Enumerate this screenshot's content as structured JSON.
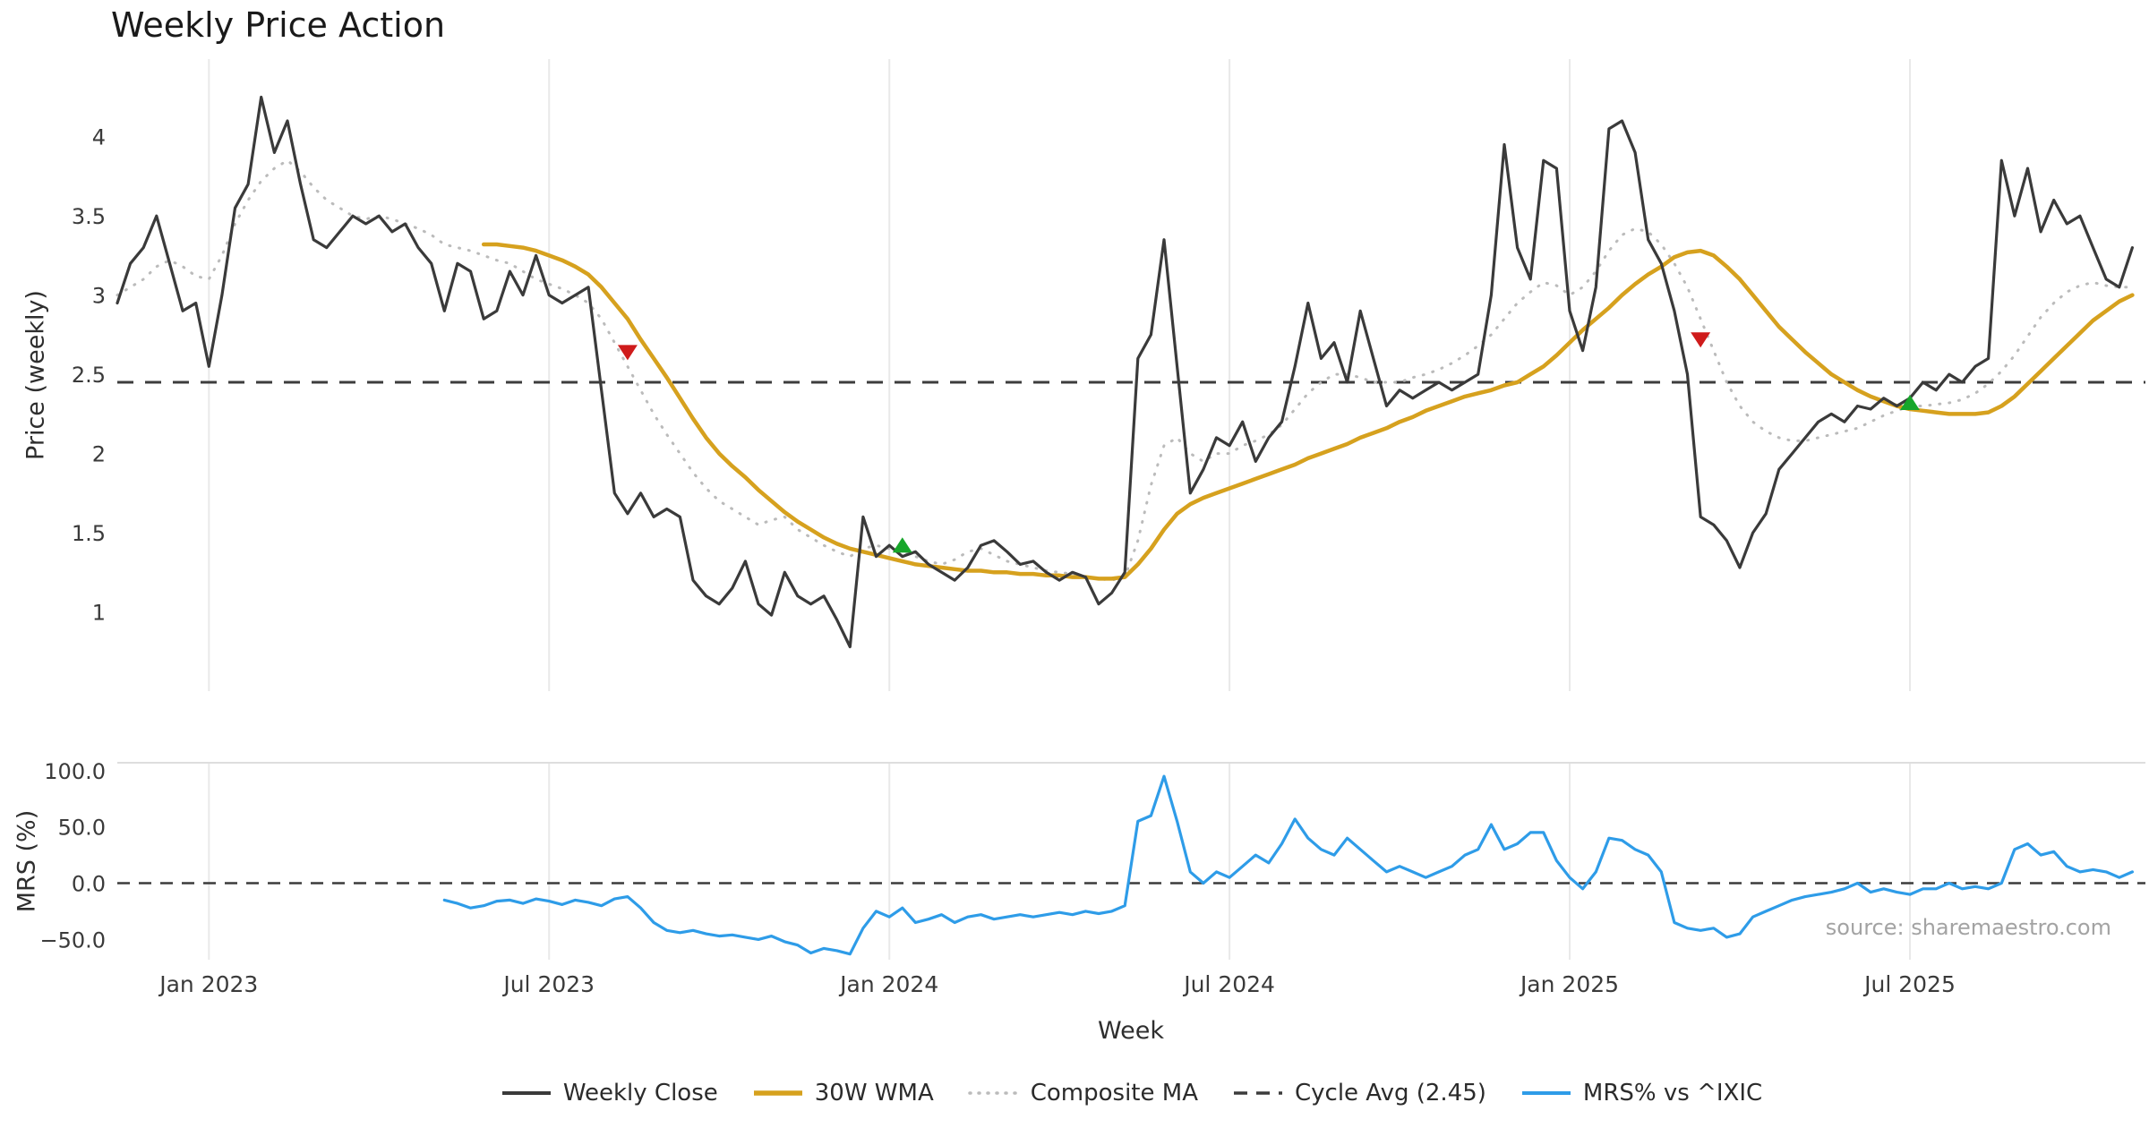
{
  "source_note": "source: sharemaestro.com",
  "legend": [
    {
      "label": "Weekly Close",
      "color": "#3a3a3a",
      "style": "solid"
    },
    {
      "label": "30W WMA",
      "color": "#d6a11e",
      "style": "solid-thick"
    },
    {
      "label": "Composite MA",
      "color": "#bbbbbb",
      "style": "dotted"
    },
    {
      "label": "Cycle Avg (2.45)",
      "color": "#3c3c3c",
      "style": "dashed"
    },
    {
      "label": "MRS% vs ^IXIC",
      "color": "#2e9ce8",
      "style": "solid"
    }
  ],
  "chart_data": {
    "type": "line",
    "title": "Weekly Price Action",
    "xlabel": "Week",
    "x_axis": {
      "tick_labels": [
        "Jan 2023",
        "Jul 2023",
        "Jan 2024",
        "Jul 2024",
        "Jan 2025",
        "Jul 2025"
      ],
      "tick_weeks": [
        7,
        33,
        59,
        85,
        111,
        137
      ],
      "total_weeks": 155
    },
    "price_panel": {
      "ylabel": "Price (weekly)",
      "yticks": [
        1,
        1.5,
        2,
        2.5,
        3,
        3.5,
        4
      ],
      "ytick_labels": [
        "1",
        "1.5",
        "2",
        "2.5",
        "3",
        "3.5",
        "4"
      ],
      "ylim": [
        0.5,
        4.49
      ],
      "cycle_avg": 2.45,
      "grid": "vertical-light",
      "sell_color": "#cf1b1b",
      "buy_color": "#17a62a",
      "sell_signals": [
        {
          "week": 39,
          "price": 2.64
        },
        {
          "week": 121,
          "price": 2.72
        }
      ],
      "buy_signals": [
        {
          "week": 60,
          "price": 1.42
        },
        {
          "week": 137,
          "price": 2.32
        }
      ],
      "series": {
        "weekly_close": {
          "name": "Weekly Close",
          "color": "#3a3a3a",
          "start_week": 0,
          "values": [
            2.95,
            3.2,
            3.3,
            3.5,
            3.2,
            2.9,
            2.95,
            2.55,
            3.0,
            3.55,
            3.7,
            4.25,
            3.9,
            4.1,
            3.7,
            3.35,
            3.3,
            3.4,
            3.5,
            3.45,
            3.5,
            3.4,
            3.45,
            3.3,
            3.2,
            2.9,
            3.2,
            3.15,
            2.85,
            2.9,
            3.15,
            3.0,
            3.25,
            3.0,
            2.95,
            3.0,
            3.05,
            2.4,
            1.75,
            1.62,
            1.75,
            1.6,
            1.65,
            1.6,
            1.2,
            1.1,
            1.05,
            1.15,
            1.32,
            1.05,
            0.98,
            1.25,
            1.1,
            1.05,
            1.1,
            0.95,
            0.78,
            1.6,
            1.35,
            1.42,
            1.35,
            1.38,
            1.3,
            1.25,
            1.2,
            1.28,
            1.42,
            1.45,
            1.38,
            1.3,
            1.32,
            1.25,
            1.2,
            1.25,
            1.22,
            1.05,
            1.12,
            1.25,
            2.6,
            2.75,
            3.35,
            2.55,
            1.75,
            1.9,
            2.1,
            2.05,
            2.2,
            1.95,
            2.1,
            2.2,
            2.55,
            2.95,
            2.6,
            2.7,
            2.45,
            2.9,
            2.6,
            2.3,
            2.4,
            2.35,
            2.4,
            2.45,
            2.4,
            2.45,
            2.5,
            3.0,
            3.95,
            3.3,
            3.1,
            3.85,
            3.8,
            2.9,
            2.65,
            3.05,
            4.05,
            4.1,
            3.9,
            3.35,
            3.2,
            2.9,
            2.5,
            1.6,
            1.55,
            1.45,
            1.28,
            1.5,
            1.62,
            1.9,
            2.0,
            2.1,
            2.2,
            2.25,
            2.2,
            2.3,
            2.28,
            2.35,
            2.3,
            2.35,
            2.45,
            2.4,
            2.5,
            2.45,
            2.55,
            2.6,
            3.85,
            3.5,
            3.8,
            3.4,
            3.6,
            3.45,
            3.5,
            3.3,
            3.1,
            3.05,
            3.3
          ]
        },
        "wma_30": {
          "name": "30W WMA",
          "color": "#d6a11e",
          "start_week": 28,
          "values": [
            3.32,
            3.32,
            3.31,
            3.3,
            3.28,
            3.25,
            3.22,
            3.18,
            3.13,
            3.05,
            2.95,
            2.85,
            2.72,
            2.6,
            2.48,
            2.35,
            2.22,
            2.1,
            2.0,
            1.92,
            1.85,
            1.77,
            1.7,
            1.63,
            1.57,
            1.52,
            1.47,
            1.43,
            1.4,
            1.38,
            1.36,
            1.34,
            1.32,
            1.3,
            1.29,
            1.28,
            1.27,
            1.26,
            1.26,
            1.25,
            1.25,
            1.24,
            1.24,
            1.23,
            1.23,
            1.22,
            1.22,
            1.21,
            1.21,
            1.22,
            1.3,
            1.4,
            1.52,
            1.62,
            1.68,
            1.72,
            1.75,
            1.78,
            1.81,
            1.84,
            1.87,
            1.9,
            1.93,
            1.97,
            2.0,
            2.03,
            2.06,
            2.1,
            2.13,
            2.16,
            2.2,
            2.23,
            2.27,
            2.3,
            2.33,
            2.36,
            2.38,
            2.4,
            2.43,
            2.45,
            2.5,
            2.55,
            2.62,
            2.7,
            2.78,
            2.85,
            2.92,
            3.0,
            3.07,
            3.13,
            3.18,
            3.24,
            3.27,
            3.28,
            3.25,
            3.18,
            3.1,
            3.0,
            2.9,
            2.8,
            2.72,
            2.64,
            2.57,
            2.5,
            2.45,
            2.4,
            2.36,
            2.33,
            2.3,
            2.28,
            2.27,
            2.26,
            2.25,
            2.25,
            2.25,
            2.26,
            2.3,
            2.36,
            2.44,
            2.52,
            2.6,
            2.68,
            2.76,
            2.84,
            2.9,
            2.96,
            3.0
          ]
        },
        "composite_ma": {
          "name": "Composite MA",
          "color": "#bbbbbb",
          "start_week": 0,
          "values": [
            3.0,
            3.05,
            3.1,
            3.18,
            3.22,
            3.18,
            3.12,
            3.1,
            3.25,
            3.45,
            3.6,
            3.72,
            3.8,
            3.85,
            3.78,
            3.68,
            3.6,
            3.55,
            3.5,
            3.48,
            3.5,
            3.48,
            3.45,
            3.42,
            3.38,
            3.32,
            3.3,
            3.28,
            3.25,
            3.22,
            3.2,
            3.15,
            3.1,
            3.07,
            3.04,
            3.0,
            2.95,
            2.85,
            2.7,
            2.55,
            2.4,
            2.25,
            2.12,
            2.0,
            1.88,
            1.78,
            1.7,
            1.65,
            1.6,
            1.55,
            1.58,
            1.6,
            1.52,
            1.47,
            1.42,
            1.38,
            1.35,
            1.4,
            1.42,
            1.4,
            1.38,
            1.35,
            1.32,
            1.3,
            1.33,
            1.38,
            1.4,
            1.36,
            1.32,
            1.3,
            1.28,
            1.26,
            1.25,
            1.24,
            1.22,
            1.21,
            1.2,
            1.22,
            1.45,
            1.8,
            2.05,
            2.1,
            2.0,
            1.95,
            2.0,
            2.0,
            2.05,
            2.08,
            2.12,
            2.18,
            2.28,
            2.38,
            2.45,
            2.5,
            2.5,
            2.48,
            2.45,
            2.45,
            2.45,
            2.48,
            2.5,
            2.53,
            2.57,
            2.62,
            2.68,
            2.75,
            2.85,
            2.95,
            3.02,
            3.08,
            3.06,
            3.0,
            3.05,
            3.15,
            3.28,
            3.38,
            3.42,
            3.4,
            3.32,
            3.2,
            3.05,
            2.85,
            2.65,
            2.45,
            2.3,
            2.2,
            2.14,
            2.1,
            2.08,
            2.08,
            2.1,
            2.12,
            2.14,
            2.16,
            2.2,
            2.24,
            2.27,
            2.3,
            2.3,
            2.31,
            2.32,
            2.34,
            2.38,
            2.44,
            2.52,
            2.62,
            2.74,
            2.86,
            2.95,
            3.02,
            3.06,
            3.08,
            3.06,
            3.05,
            3.05
          ]
        }
      }
    },
    "mrs_panel": {
      "ylabel": "MRS (%)",
      "yticks": [
        100,
        50,
        0,
        -50
      ],
      "ytick_labels": [
        "100.0",
        "50.0",
        "0.0",
        "−50.0"
      ],
      "ylim": [
        -68,
        107
      ],
      "zero_line": 0,
      "series": {
        "mrs_pct": {
          "name": "MRS% vs ^IXIC",
          "color": "#2e9ce8",
          "start_week": 25,
          "values": [
            -15,
            -18,
            -22,
            -20,
            -16,
            -15,
            -18,
            -14,
            -16,
            -19,
            -15,
            -17,
            -20,
            -14,
            -12,
            -22,
            -35,
            -42,
            -44,
            -42,
            -45,
            -47,
            -46,
            -48,
            -50,
            -47,
            -52,
            -55,
            -62,
            -58,
            -60,
            -63,
            -40,
            -25,
            -30,
            -22,
            -35,
            -32,
            -28,
            -35,
            -30,
            -28,
            -32,
            -30,
            -28,
            -30,
            -28,
            -26,
            -28,
            -25,
            -27,
            -25,
            -20,
            55,
            60,
            95,
            55,
            10,
            0,
            10,
            5,
            15,
            25,
            18,
            35,
            57,
            40,
            30,
            25,
            40,
            30,
            20,
            10,
            15,
            10,
            5,
            10,
            15,
            25,
            30,
            52,
            30,
            35,
            45,
            45,
            20,
            5,
            -5,
            10,
            40,
            38,
            30,
            25,
            10,
            -35,
            -40,
            -42,
            -40,
            -48,
            -45,
            -30,
            -25,
            -20,
            -15,
            -12,
            -10,
            -8,
            -5,
            0,
            -8,
            -5,
            -8,
            -10,
            -5,
            -5,
            0,
            -5,
            -3,
            -5,
            0,
            30,
            35,
            25,
            28,
            15,
            10,
            12,
            10,
            5,
            10
          ]
        }
      }
    }
  }
}
